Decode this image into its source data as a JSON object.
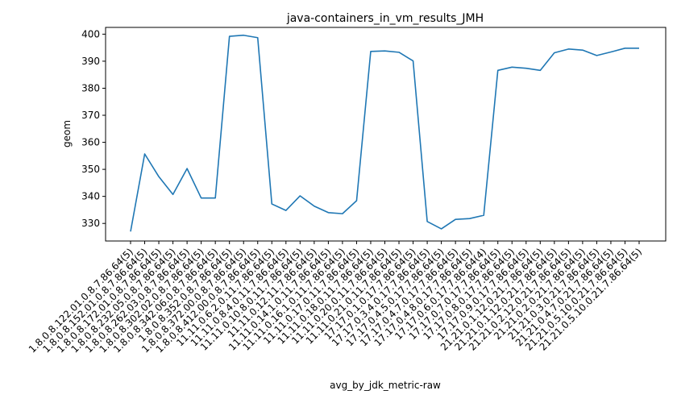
{
  "chart_data": {
    "type": "line",
    "title": "java-containers_in_vm_results_JMH",
    "xlabel": "avg_by_jdk_metric-raw",
    "ylabel": "geom",
    "ylim": [
      323.5,
      402.5
    ],
    "yticks": [
      330,
      340,
      350,
      360,
      370,
      380,
      390,
      400
    ],
    "grid": false,
    "line_color": "#1f77b4",
    "categories": [
      "1.8.0.8.122.01.0.8.7.86.64(5)",
      "1.8.0.8.152.01.0.8.7.86.64(5)",
      "1.8.0.8.172.01.0.8.7.86.64(5)",
      "1.8.0.8.232.05.0.8.7.86.64(5)",
      "1.8.0.8.262.03.0.8.7.86.64(5)",
      "1.8.0.8.302.02.0.8.7.86.64(5)",
      "1.8.0.8.342.06.0.8.7.86.64(5)",
      "1.8.0.8.352.0.8.7.86.64(5)",
      "1.8.0.8.372.00.0.8.7.86.64(5)",
      "1.8.0.8.412.00.0.8.7.86.64(5)",
      "11.11.0.6.2.0.11.7.86.64(5)",
      "11.11.0.8.4.0.11.7.86.64(5)",
      "11.11.0.10.8.0.11.7.86.64(5)",
      "11.11.0.12.11.7.86.64(5)",
      "11.11.0.14.1.0.11.7.86.64(5)",
      "11.11.0.16.1.0.11.7.86.64(5)",
      "11.11.0.17.0.11.7.86.64(5)",
      "11.11.0.18.0.11.7.86.64(5)",
      "11.11.0.20.0.11.7.86.64(5)",
      "11.11.0.21.0.11.7.86.64(5)",
      "17.17.0.1.0.17.7.86.64(5)",
      "17.17.0.3.4.0.17.7.86.64(5)",
      "17.17.0.4.5.0.17.7.86.64(5)",
      "17.17.0.4.7.0.17.7.86.64(5)",
      "17.17.0.4.8.0.17.7.86.64(5)",
      "17.17.0.6.0.17.7.86.64(4)",
      "17.17.0.7.0.17.7.86.64(5)",
      "17.17.0.8.0.17.7.86.64(5)",
      "17.17.0.9.0.17.7.86.64(5)",
      "21.21.0.1.12.0.21.7.86.64(5)",
      "21.21.0.1.12.0.21.7.86.64(5)",
      "21.21.0.2.12.0.21.7.86.64(5)",
      "21.21.0.2.0.21.7.86.64(5)",
      "21.21.0.3.0.21.7.86.64(5)",
      "21.21.0.4.7.0.21.7.86.64(5)",
      "21.21.0.5.10.0.21.7.86.64(5)",
      "21.21.0.5.10.0.21.7.86.64(5)"
    ],
    "values": [
      327.0,
      355.7,
      347.3,
      340.7,
      350.3,
      339.4,
      339.4,
      399.2,
      399.6,
      398.7,
      337.2,
      334.8,
      340.2,
      336.4,
      334.0,
      333.6,
      338.4,
      393.6,
      393.8,
      393.3,
      390.1,
      330.7,
      328.0,
      331.5,
      331.8,
      333.0,
      386.6,
      387.8,
      387.4,
      386.6,
      393.1,
      394.5,
      394.1,
      392.1,
      393.4,
      394.8,
      394.8
    ]
  }
}
